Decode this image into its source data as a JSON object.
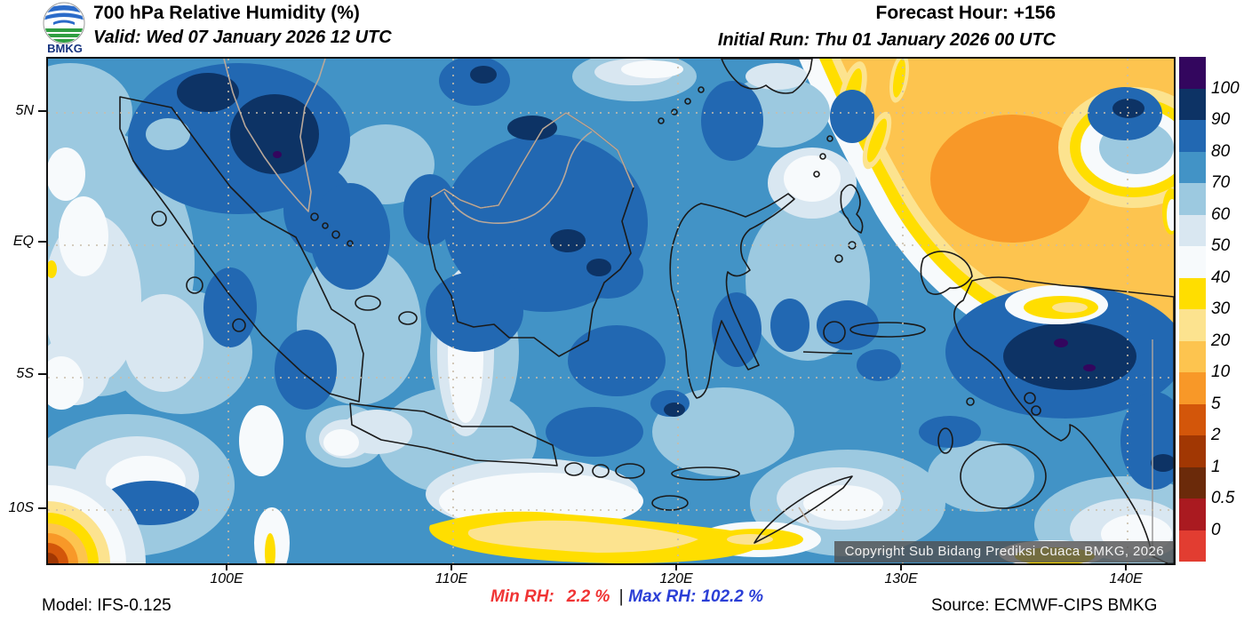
{
  "header": {
    "logo_text": "BMKG",
    "title": "700 hPa Relative Humidity (%)",
    "valid": "Valid: Wed 07 January 2026 12 UTC",
    "forecast_hour": "Forecast Hour: +156",
    "initial_run": "Initial Run: Thu 01 January 2026 00 UTC"
  },
  "axes": {
    "lat_labels": [
      "5N",
      "EQ",
      "5S",
      "10S"
    ],
    "lon_labels": [
      "100E",
      "110E",
      "120E",
      "130E",
      "140E"
    ]
  },
  "colorbar": {
    "tick_labels": [
      "100",
      "90",
      "80",
      "70",
      "60",
      "50",
      "40",
      "30",
      "20",
      "10",
      "5",
      "2",
      "1",
      "0.5",
      "0"
    ],
    "colors_top_to_bottom": [
      "#33065E",
      "#0D3365",
      "#2268B2",
      "#4293C6",
      "#9CC9E0",
      "#D9E7F1",
      "#F7FAFC",
      "#FFDE00",
      "#FCE38F",
      "#FDC44F",
      "#F89828",
      "#D3560A",
      "#A13703",
      "#6B2A0A",
      "#AA1A20",
      "#E23D31"
    ]
  },
  "map": {
    "copyright": "Copyright Sub Bidang Prediksi Cuaca BMKG, 2026"
  },
  "footer": {
    "model": "Model: IFS-0.125",
    "min_rh_label": "Min RH:",
    "min_rh_value": "2.2 %",
    "separator": "|",
    "max_rh_label": "Max RH:",
    "max_rh_value": "102.2 %",
    "source": "Source: ECMWF-CIPS BMKG"
  },
  "colors": {
    "min_rh_text": "#F03434",
    "max_rh_text": "#2B3FD6",
    "copyright_bg": "rgba(80,80,80,0.80)",
    "coastline": "#1A1A1A",
    "foreign_border": "#B9A89A",
    "gridline": "#C9BDA9",
    "png_border": "#A0A0A0",
    "map_border": "#111111",
    "logo_blue": "#2B6BC9",
    "logo_green": "#2F9E41",
    "logo_text_color": "#16337F"
  }
}
